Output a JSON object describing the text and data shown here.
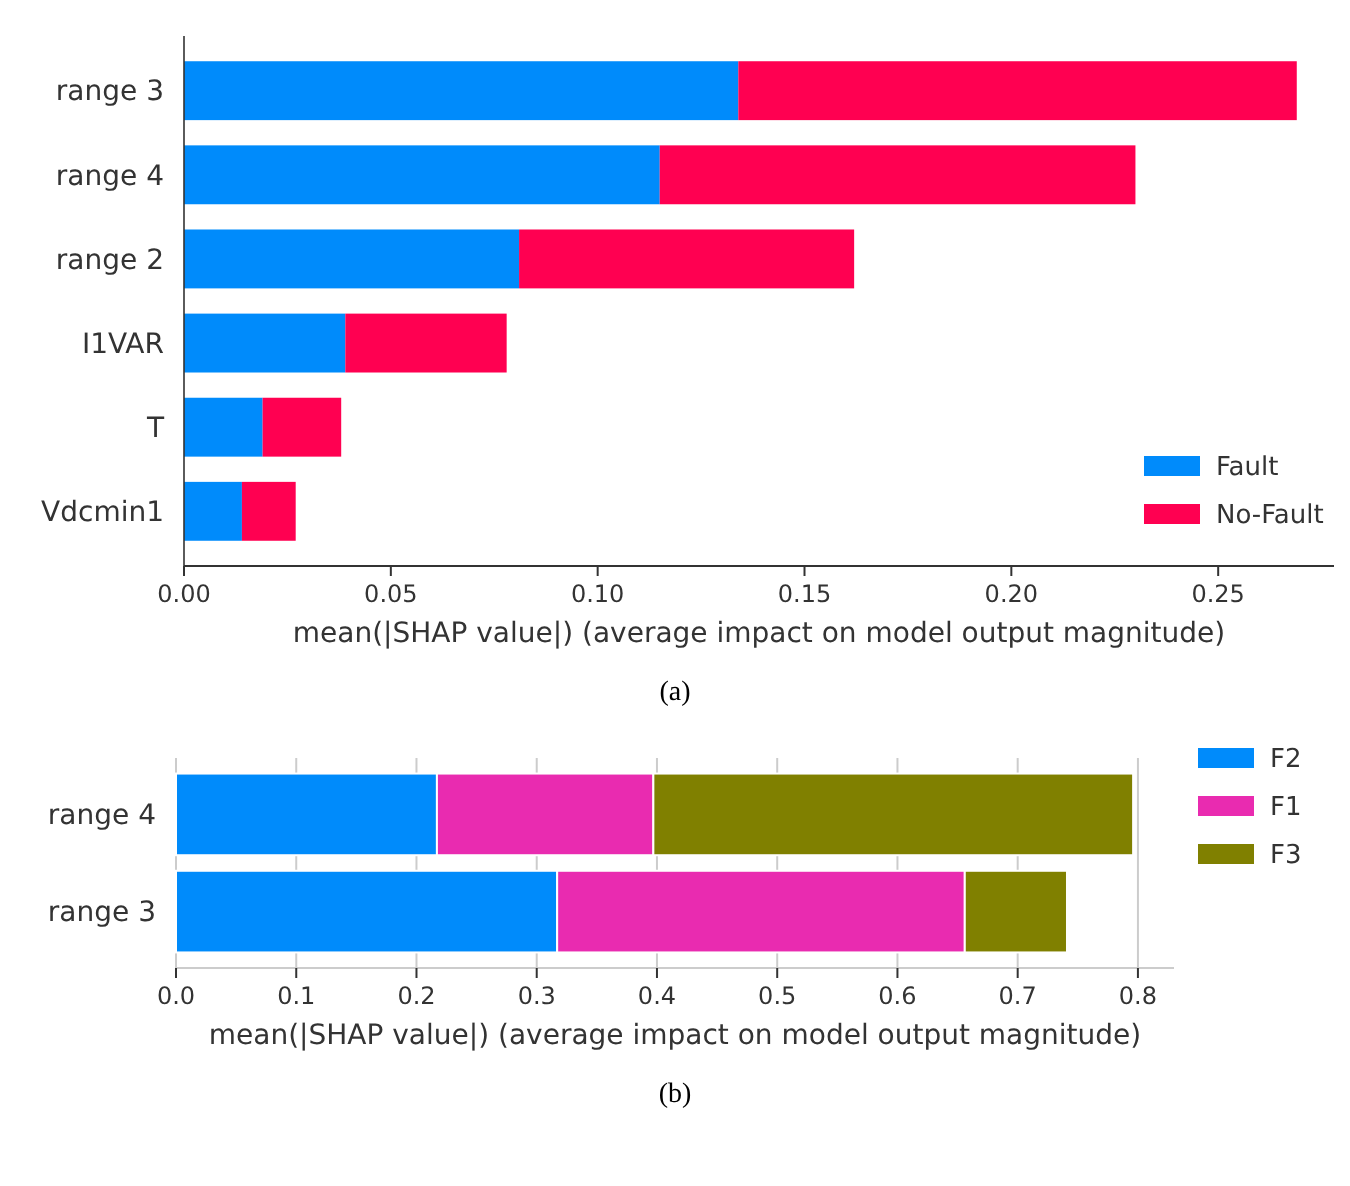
{
  "chart_data": [
    {
      "type": "bar",
      "orientation": "horizontal",
      "stacked": true,
      "categories": [
        "range 3",
        "range 4",
        "range 2",
        "I1VAR",
        "T",
        "Vdcmin1"
      ],
      "series": [
        {
          "name": "Fault",
          "color": "#008bfb",
          "values": [
            0.134,
            0.115,
            0.081,
            0.039,
            0.019,
            0.014
          ]
        },
        {
          "name": "No-Fault",
          "color": "#ff0051",
          "values": [
            0.135,
            0.115,
            0.081,
            0.039,
            0.019,
            0.013
          ]
        }
      ],
      "xlim": [
        0,
        0.278
      ],
      "xticks": [
        {
          "value": 0,
          "label": "0.00"
        },
        0.05,
        {
          "value": 0.1,
          "label": "0.10"
        },
        0.15,
        {
          "value": 0.2,
          "label": "0.20"
        },
        0.25
      ],
      "xlabel": "mean(|SHAP value|) (average impact on model output magnitude)",
      "legend": "bottom right",
      "grid": false,
      "annotations": [
        "(a)"
      ]
    },
    {
      "type": "bar",
      "orientation": "horizontal",
      "stacked": true,
      "categories": [
        "range 4",
        "range 3"
      ],
      "series": [
        {
          "name": "F2",
          "color": "#008bfb",
          "values": [
            0.217,
            0.317
          ]
        },
        {
          "name": "F1",
          "color": "#e92bb0",
          "values": [
            0.18,
            0.339
          ]
        },
        {
          "name": "F3",
          "color": "#808000",
          "values": [
            0.399,
            0.085
          ]
        }
      ],
      "xlim": [
        0,
        0.83
      ],
      "xticks": [
        {
          "value": 0,
          "label": "0.0"
        },
        0.1,
        0.2,
        0.3,
        0.4,
        0.5,
        0.6,
        0.7,
        0.8
      ],
      "xlabel": "mean(|SHAP value|) (average impact on model output magnitude)",
      "legend": "right",
      "grid": "x",
      "annotations": [
        "(b)"
      ]
    }
  ]
}
